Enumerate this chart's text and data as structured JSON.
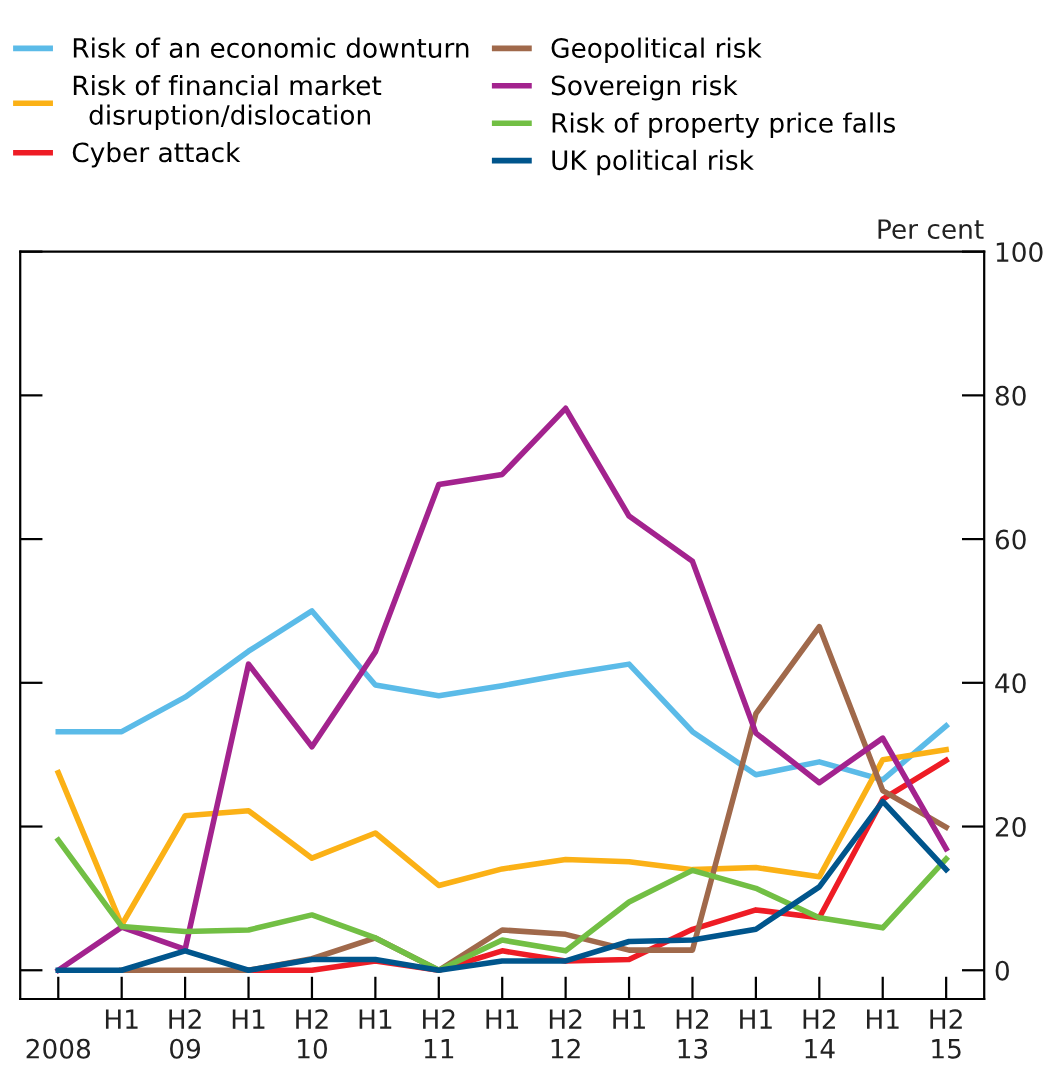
{
  "chart_data": {
    "type": "line",
    "categories": [
      "\n2008",
      "H1",
      "H2\n09",
      "H1",
      "H2\n10",
      "H1",
      "H2\n11",
      "H1",
      "H2\n12",
      "H1",
      "H2\n13",
      "H1",
      "H2\n14",
      "H1",
      "H2\n15"
    ],
    "ylabel": "Per cent",
    "ylim": [
      -4,
      100
    ],
    "yticks": [
      0,
      20,
      40,
      60,
      80,
      100
    ],
    "legend": "top",
    "grid": false,
    "line_style": "solid",
    "marker": "none",
    "series": [
      {
        "name": "Risk of an economic downturn",
        "color": "#5bbbe8",
        "values": [
          33.2,
          33.2,
          38,
          44.4,
          50,
          39.7,
          38.2,
          39.6,
          41.2,
          42.6,
          33.2,
          27.2,
          29,
          26.5,
          34
        ]
      },
      {
        "name": "Risk of financial market\n  disruption/dislocation",
        "color": "#fbb116",
        "values": [
          27.5,
          6.3,
          21.5,
          22.2,
          15.6,
          19.1,
          11.8,
          14.1,
          15.4,
          15.1,
          14,
          14.3,
          13,
          29.3,
          30.7
        ]
      },
      {
        "name": "Cyber attack",
        "color": "#ee1c25",
        "values": [
          null,
          null,
          null,
          0,
          0,
          1.3,
          0,
          2.7,
          1.3,
          1.5,
          5.7,
          8.4,
          7.3,
          23.8,
          29.2
        ]
      },
      {
        "name": "Geopolitical risk",
        "color": "#a0694b",
        "values": [
          null,
          0,
          0,
          0,
          1.6,
          4.5,
          0,
          5.6,
          5,
          2.8,
          2.8,
          35.7,
          47.8,
          25,
          19.9
        ]
      },
      {
        "name": "Sovereign risk",
        "color": "#a3238e",
        "values": [
          0,
          6,
          2.9,
          42.6,
          31.1,
          44.3,
          67.6,
          69,
          78.2,
          63.2,
          56.9,
          33,
          26.1,
          32.3,
          16.9
        ]
      },
      {
        "name": "Risk of property price falls",
        "color": "#72bf44",
        "values": [
          18.1,
          6.1,
          5.4,
          5.6,
          7.7,
          4.5,
          0,
          4.2,
          2.7,
          9.5,
          13.9,
          11.4,
          7.3,
          5.9,
          15.5
        ]
      },
      {
        "name": "UK political risk",
        "color": "#00558c",
        "values": [
          0,
          0,
          2.7,
          0,
          1.5,
          1.5,
          0,
          1.3,
          1.3,
          4,
          4.2,
          5.7,
          11.6,
          23.5,
          14
        ]
      }
    ]
  }
}
